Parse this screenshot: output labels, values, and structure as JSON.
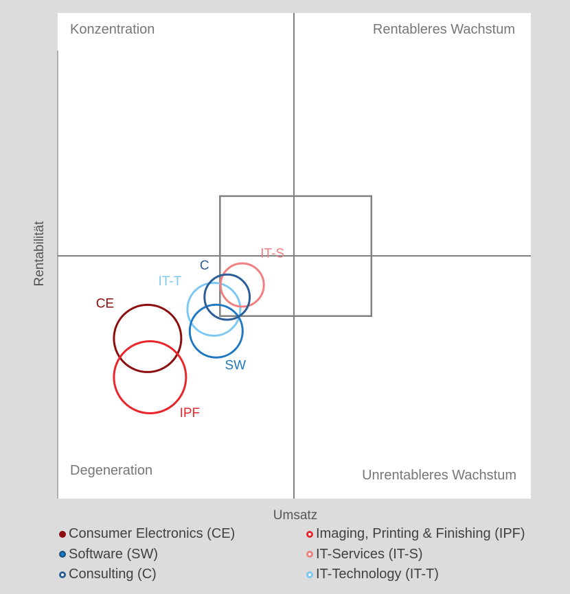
{
  "chart_data": {
    "type": "bubble",
    "xlabel": "Umsatz",
    "ylabel": "Rentabilität",
    "quadrants": {
      "top_left": "Konzentration",
      "top_right": "Rentableres Wachstum",
      "bottom_left": "Degeneration",
      "bottom_right": "Unrentableres Wachstum"
    },
    "series": [
      {
        "name": "Consumer Electronics (CE)",
        "short": "CE",
        "x": 0.19,
        "y": 0.33,
        "size": 0.7,
        "color": "#8b0d0d",
        "marker": "dot"
      },
      {
        "name": "Imaging, Printing & Finishing (IPF)",
        "short": "IPF",
        "x": 0.195,
        "y": 0.25,
        "size": 0.75,
        "color": "#e8262b",
        "marker": "ring"
      },
      {
        "name": "Software (SW)",
        "short": "SW",
        "x": 0.335,
        "y": 0.345,
        "size": 0.55,
        "color": "#1f78c1",
        "marker": "ring-bold"
      },
      {
        "name": "IT-Services (IT-S)",
        "short": "IT-S",
        "x": 0.39,
        "y": 0.44,
        "size": 0.45,
        "color": "#f08080",
        "marker": "ring"
      },
      {
        "name": "Consulting (C)",
        "short": "C",
        "x": 0.358,
        "y": 0.415,
        "size": 0.47,
        "color": "#2b5d99",
        "marker": "ring"
      },
      {
        "name": "IT-Technology (IT-T)",
        "short": "IT-T",
        "x": 0.33,
        "y": 0.39,
        "size": 0.55,
        "color": "#7cc8f2",
        "marker": "ring"
      }
    ],
    "xlim": [
      0,
      1
    ],
    "ylim": [
      0,
      1
    ],
    "dividers": {
      "x": 0.5,
      "y": 0.5
    },
    "target_box": {
      "x": [
        0.343,
        0.663
      ],
      "y": [
        0.376,
        0.623
      ]
    },
    "legend_position": "bottom"
  }
}
